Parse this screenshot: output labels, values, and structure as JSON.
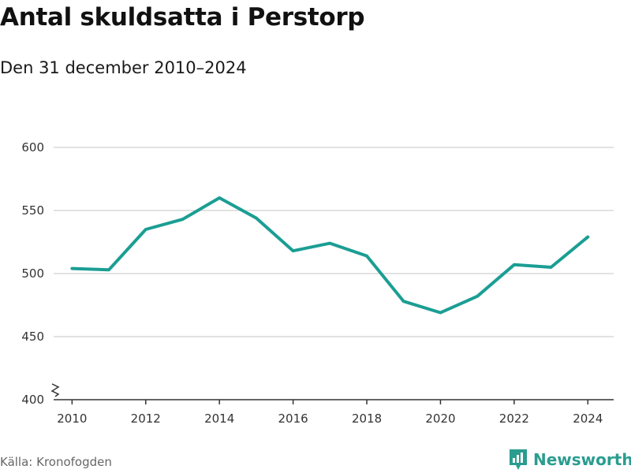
{
  "title": "Antal skuldsatta i Perstorp",
  "subtitle": "Den 31 december 2010–2024",
  "source": "Källa: Kronofogden",
  "brand": {
    "name": "Newsworthy",
    "icon": "bar-chart-logo-icon"
  },
  "colors": {
    "line": "#1b9e93",
    "grid": "#d9d9d9",
    "axis": "#333333",
    "brand": "#2a9d8f"
  },
  "chart_data": {
    "type": "line",
    "title": "Antal skuldsatta i Perstorp",
    "subtitle": "Den 31 december 2010–2024",
    "xlabel": "",
    "ylabel": "",
    "x": [
      2010,
      2011,
      2012,
      2013,
      2014,
      2015,
      2016,
      2017,
      2018,
      2019,
      2020,
      2021,
      2022,
      2023,
      2024
    ],
    "values": [
      504,
      503,
      535,
      543,
      560,
      544,
      518,
      524,
      514,
      478,
      469,
      482,
      507,
      505,
      529
    ],
    "x_ticks": [
      2010,
      2012,
      2014,
      2016,
      2018,
      2020,
      2022,
      2024
    ],
    "y_ticks": [
      400,
      450,
      500,
      550,
      600
    ],
    "ylim": [
      400,
      600
    ],
    "xlim": [
      2009.5,
      2024.7
    ],
    "grid": true,
    "axis_break": true,
    "legend": "none"
  }
}
